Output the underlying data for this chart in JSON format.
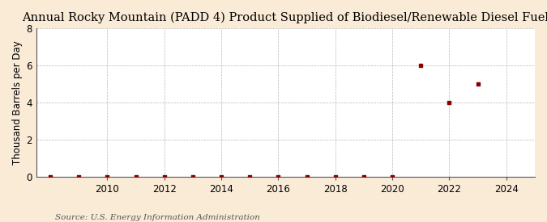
{
  "title": "Annual Rocky Mountain (PADD 4) Product Supplied of Biodiesel/Renewable Diesel Fuel",
  "ylabel": "Thousand Barrels per Day",
  "source": "Source: U.S. Energy Information Administration",
  "background_color": "#faebd7",
  "plot_background_color": "#ffffff",
  "marker_color": "#8b0000",
  "grid_color": "#999999",
  "years": [
    2008,
    2009,
    2010,
    2011,
    2012,
    2013,
    2014,
    2015,
    2016,
    2017,
    2018,
    2019,
    2020,
    2021,
    2022,
    2023
  ],
  "values": [
    0.0,
    0.0,
    0.0,
    0.0,
    0.0,
    0.0,
    0.0,
    0.0,
    0.0,
    0.0,
    0.0,
    0.0,
    0.0,
    6.0,
    4.0,
    5.0
  ],
  "xlim": [
    2007.5,
    2025.0
  ],
  "ylim": [
    0,
    8
  ],
  "yticks": [
    0,
    2,
    4,
    6,
    8
  ],
  "xticks": [
    2010,
    2012,
    2014,
    2016,
    2018,
    2020,
    2022,
    2024
  ],
  "title_fontsize": 10.5,
  "label_fontsize": 8.5,
  "tick_fontsize": 8.5,
  "source_fontsize": 7.5
}
